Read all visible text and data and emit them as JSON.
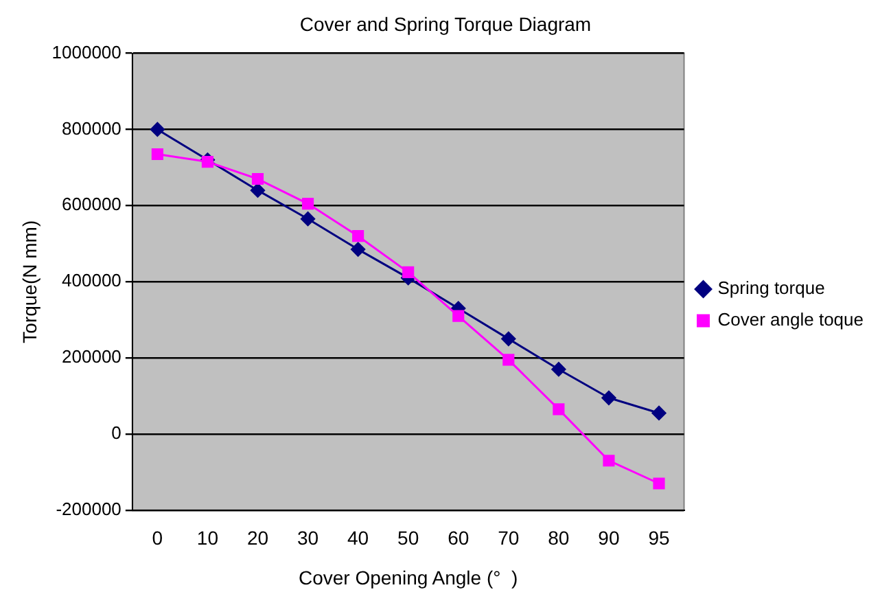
{
  "chart_data": {
    "type": "line",
    "title": "Cover and Spring Torque Diagram",
    "xlabel": "Cover Opening Angle (°  )",
    "ylabel": "Torque(N mm)",
    "categories": [
      "0",
      "10",
      "20",
      "30",
      "40",
      "50",
      "60",
      "70",
      "80",
      "90",
      "95"
    ],
    "series": [
      {
        "name": "Spring torque",
        "color": "#000080",
        "marker": "diamond",
        "values": [
          800000,
          720000,
          640000,
          565000,
          485000,
          410000,
          330000,
          250000,
          170000,
          95000,
          55000
        ]
      },
      {
        "name": "Cover angle toque",
        "color": "#ff00ff",
        "marker": "square",
        "values": [
          735000,
          715000,
          670000,
          605000,
          520000,
          425000,
          310000,
          195000,
          65000,
          -70000,
          -130000
        ]
      }
    ],
    "ylim": [
      -200000,
      1000000
    ],
    "yticks": [
      -200000,
      0,
      200000,
      400000,
      600000,
      800000,
      1000000
    ],
    "grid": "y",
    "legend": "right"
  }
}
